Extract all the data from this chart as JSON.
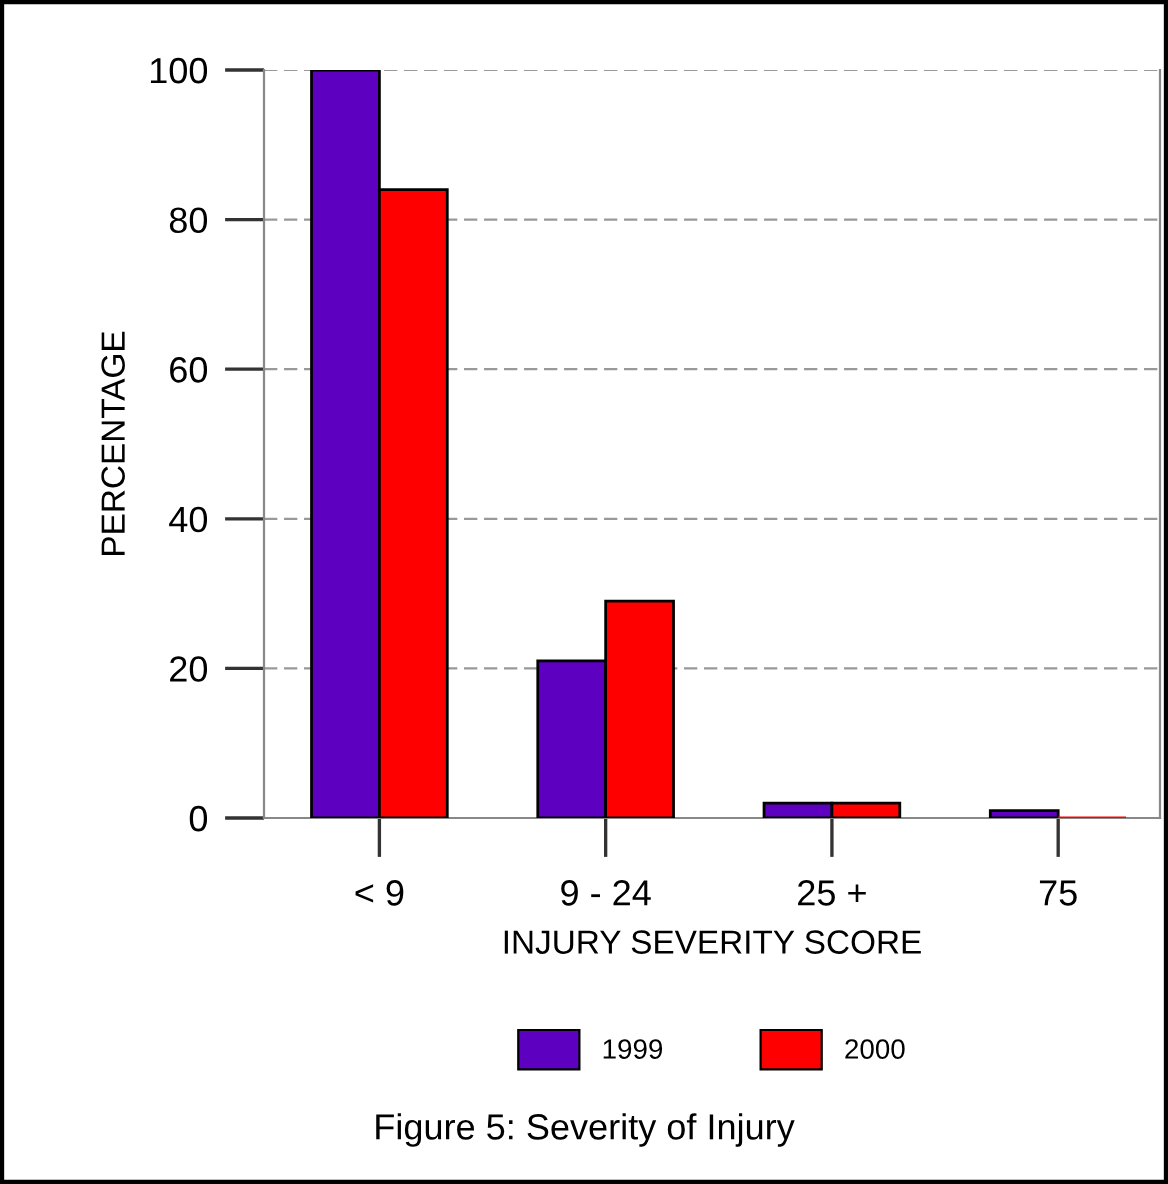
{
  "chart_data": {
    "type": "bar",
    "title": "Figure 5: Severity of Injury",
    "xlabel": "INJURY SEVERITY SCORE",
    "ylabel": "PERCENTAGE",
    "categories": [
      "< 9",
      "9 - 24",
      "25 +",
      "75"
    ],
    "series": [
      {
        "name": "1999",
        "color": "#5e00bf",
        "values": [
          100,
          21,
          2,
          1
        ]
      },
      {
        "name": "2000",
        "color": "#ff0000",
        "values": [
          84,
          29,
          2,
          0
        ]
      }
    ],
    "ylim": [
      0,
      100
    ],
    "yticks": [
      0,
      20,
      40,
      60,
      80,
      100
    ],
    "grid": "y",
    "legend": "bottom"
  }
}
